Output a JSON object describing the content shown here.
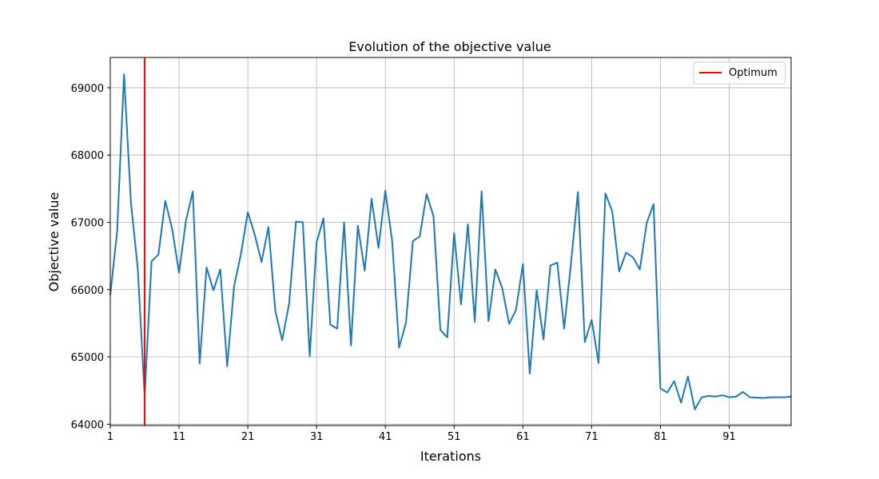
{
  "chart_data": {
    "type": "line",
    "title": "Evolution of the objective value",
    "xlabel": "Iterations",
    "ylabel": "Objective value",
    "xlim": [
      1,
      100
    ],
    "ylim": [
      63980,
      69450
    ],
    "x_ticks": [
      "1",
      "11",
      "21",
      "31",
      "41",
      "51",
      "61",
      "71",
      "81",
      "91"
    ],
    "y_ticks": [
      "64000",
      "65000",
      "66000",
      "67000",
      "68000",
      "69000"
    ],
    "grid": true,
    "legend_position": "top-right",
    "optimum": {
      "label": "Optimum",
      "x": 6,
      "color": "#ff0000"
    },
    "series": [
      {
        "color": "#1f77b4",
        "x": [
          1,
          2,
          3,
          4,
          5,
          6,
          7,
          8,
          9,
          10,
          11,
          12,
          13,
          14,
          15,
          16,
          17,
          18,
          19,
          20,
          21,
          22,
          23,
          24,
          25,
          26,
          27,
          28,
          29,
          30,
          31,
          32,
          33,
          34,
          35,
          36,
          37,
          38,
          39,
          40,
          41,
          42,
          43,
          44,
          45,
          46,
          47,
          48,
          49,
          50,
          51,
          52,
          53,
          54,
          55,
          56,
          57,
          58,
          59,
          60,
          61,
          62,
          63,
          64,
          65,
          66,
          67,
          68,
          69,
          70,
          71,
          72,
          73,
          74,
          75,
          76,
          77,
          78,
          79,
          80,
          81,
          82,
          83,
          84,
          85,
          86,
          87,
          88,
          89,
          90,
          91,
          92,
          93,
          94,
          95,
          96,
          97,
          98,
          99,
          100
        ],
        "values": [
          65920,
          66870,
          69200,
          67300,
          66310,
          64420,
          66420,
          66520,
          67320,
          66900,
          66250,
          67020,
          67460,
          64900,
          66330,
          65990,
          66300,
          64860,
          66050,
          66530,
          67150,
          66820,
          66410,
          66930,
          65680,
          65250,
          65790,
          67010,
          67000,
          65010,
          66700,
          67060,
          65480,
          65420,
          67000,
          65170,
          66950,
          66280,
          67350,
          66620,
          67470,
          66710,
          65140,
          65510,
          66720,
          66790,
          67420,
          67090,
          65400,
          65290,
          66840,
          65780,
          66970,
          65520,
          67460,
          65530,
          66300,
          66020,
          65490,
          65700,
          66380,
          64750,
          65990,
          65260,
          66360,
          66400,
          65420,
          66400,
          67450,
          65220,
          65550,
          64910,
          67430,
          67160,
          66270,
          66550,
          66480,
          66300,
          66990,
          67270,
          64530,
          64470,
          64640,
          64320,
          64710,
          64220,
          64400,
          64420,
          64410,
          64430,
          64400,
          64410,
          64480,
          64400,
          64395,
          64390,
          64400,
          64400,
          64400,
          64410
        ]
      }
    ]
  },
  "legend": {
    "optimum_label": "Optimum"
  }
}
